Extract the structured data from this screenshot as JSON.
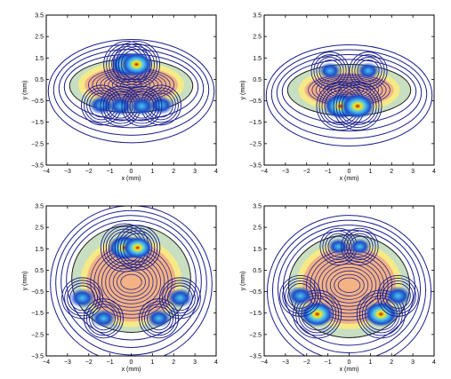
{
  "chart_data": [
    {
      "type": "contour",
      "xlabel": "x (mm)",
      "ylabel": "y (mm)",
      "xlim": [
        -4,
        4
      ],
      "ylim": [
        -3.5,
        3.5
      ],
      "xticks": [
        -4,
        -3,
        -2,
        -1,
        0,
        1,
        2,
        3,
        4
      ],
      "yticks": [
        -3.5,
        -2.5,
        -1.5,
        -0.5,
        0.5,
        1.5,
        2.5,
        3.5
      ],
      "xtick_labels": [
        "−4",
        "−3",
        "−2",
        "−1",
        "0",
        "1",
        "2",
        "3",
        "4"
      ],
      "ytick_labels": [
        "−3.5",
        "−2.5",
        "−1.5",
        "−0.5",
        "0.5",
        "1.5",
        "2.5",
        "3.5"
      ],
      "grid": false,
      "regions": {
        "outer_ellipse": {
          "cx": 0,
          "cy": 0.2,
          "rx": 2.9,
          "ry": 1.25
        },
        "core_ellipse": {
          "cx": 0,
          "cy": 0.25,
          "rx": 2.2,
          "ry": 0.85
        }
      },
      "hotspots": [
        {
          "x": -0.2,
          "y": 1.2,
          "level": 0.9
        },
        {
          "x": 0.25,
          "y": 1.2,
          "level": 0.9
        },
        {
          "x": -1.4,
          "y": -0.7,
          "level": 0.5
        },
        {
          "x": 1.4,
          "y": -0.7,
          "level": 0.5
        },
        {
          "x": -0.5,
          "y": -0.75,
          "level": 0.5
        },
        {
          "x": 0.5,
          "y": -0.75,
          "level": 0.5
        }
      ]
    },
    {
      "type": "contour",
      "xlabel": "x (mm)",
      "ylabel": "y (mm)",
      "xlim": [
        -4,
        4
      ],
      "ylim": [
        -3.5,
        3.5
      ],
      "xticks": [
        -4,
        -3,
        -2,
        -1,
        0,
        1,
        2,
        3,
        4
      ],
      "yticks": [
        -3.5,
        -2.5,
        -1.5,
        -0.5,
        0.5,
        1.5,
        2.5,
        3.5
      ],
      "xtick_labels": [
        "−4",
        "−3",
        "−2",
        "−1",
        "0",
        "1",
        "2",
        "3",
        "4"
      ],
      "ytick_labels": [
        "−3.5",
        "−2.5",
        "−1.5",
        "−0.5",
        "0.5",
        "1.5",
        "2.5",
        "3.5"
      ],
      "grid": false,
      "regions": {
        "outer_ellipse": {
          "cx": 0,
          "cy": 0,
          "rx": 2.9,
          "ry": 1.2
        },
        "core_ellipse": {
          "cx": 0,
          "cy": 0,
          "rx": 2.1,
          "ry": 0.8
        }
      },
      "hotspots": [
        {
          "x": -0.4,
          "y": -0.75,
          "level": 1.0
        },
        {
          "x": 0.4,
          "y": -0.75,
          "level": 1.0
        },
        {
          "x": -0.9,
          "y": 0.9,
          "level": 0.35
        },
        {
          "x": 0.9,
          "y": 0.9,
          "level": 0.35
        }
      ]
    },
    {
      "type": "contour",
      "xlabel": "x (mm)",
      "ylabel": "y (mm)",
      "xlim": [
        -4,
        4
      ],
      "ylim": [
        -3.5,
        3.5
      ],
      "xticks": [
        -4,
        -3,
        -2,
        -1,
        0,
        1,
        2,
        3,
        4
      ],
      "yticks": [
        -3.5,
        -2.5,
        -1.5,
        -0.5,
        0.5,
        1.5,
        2.5,
        3.5
      ],
      "xtick_labels": [
        "−4",
        "−3",
        "−2",
        "−1",
        "0",
        "1",
        "2",
        "3",
        "4"
      ],
      "ytick_labels": [
        "−3.5",
        "−2.5",
        "−1.5",
        "−0.5",
        "0.5",
        "1.5",
        "2.5",
        "3.5"
      ],
      "grid": false,
      "regions": {
        "outer_ellipse": {
          "cx": 0,
          "cy": 0.1,
          "rx": 2.8,
          "ry": 2.5
        },
        "core_ellipse": {
          "cx": 0,
          "cy": -0.05,
          "rx": 2.1,
          "ry": 1.85
        }
      },
      "hotspots": [
        {
          "x": -0.3,
          "y": 1.55,
          "level": 1.0
        },
        {
          "x": 0.3,
          "y": 1.55,
          "level": 0.8
        },
        {
          "x": -2.3,
          "y": -0.8,
          "level": 0.55
        },
        {
          "x": 2.3,
          "y": -0.8,
          "level": 0.55
        },
        {
          "x": -1.3,
          "y": -1.75,
          "level": 0.45
        },
        {
          "x": 1.3,
          "y": -1.75,
          "level": 0.45
        }
      ]
    },
    {
      "type": "contour",
      "xlabel": "x (mm)",
      "ylabel": "y (mm)",
      "xlim": [
        -4,
        4
      ],
      "ylim": [
        -3.5,
        3.5
      ],
      "xticks": [
        -4,
        -3,
        -2,
        -1,
        0,
        1,
        2,
        3,
        4
      ],
      "yticks": [
        -3.5,
        -2.5,
        -1.5,
        -0.5,
        0.5,
        1.5,
        2.5,
        3.5
      ],
      "xtick_labels": [
        "−4",
        "−3",
        "−2",
        "−1",
        "0",
        "1",
        "2",
        "3",
        "4"
      ],
      "ytick_labels": [
        "−3.5",
        "−2.5",
        "−1.5",
        "−0.5",
        "0.5",
        "1.5",
        "2.5",
        "3.5"
      ],
      "grid": false,
      "regions": {
        "outer_ellipse": {
          "cx": 0,
          "cy": -0.25,
          "rx": 2.85,
          "ry": 2.4
        },
        "core_ellipse": {
          "cx": 0,
          "cy": -0.2,
          "rx": 2.2,
          "ry": 1.8
        }
      },
      "hotspots": [
        {
          "x": -1.5,
          "y": -1.55,
          "level": 1.0
        },
        {
          "x": 1.5,
          "y": -1.55,
          "level": 1.0
        },
        {
          "x": -2.3,
          "y": -0.7,
          "level": 0.55
        },
        {
          "x": 2.3,
          "y": -0.7,
          "level": 0.55
        },
        {
          "x": -0.5,
          "y": 1.6,
          "level": 0.3
        },
        {
          "x": 0.5,
          "y": 1.6,
          "level": 0.3
        }
      ]
    }
  ],
  "colors": {
    "outer_fill": "#c8dfc2",
    "mid_fill": "#f5ea86",
    "core_fill": "#f4b285",
    "contour_line": "#1a1f8c",
    "hot_center": "#b31204",
    "hot_yellow": "#f7ea1c",
    "hot_cyan": "#4cc3f0",
    "hot_blue": "#1d4ec7",
    "axis": "#000000"
  }
}
